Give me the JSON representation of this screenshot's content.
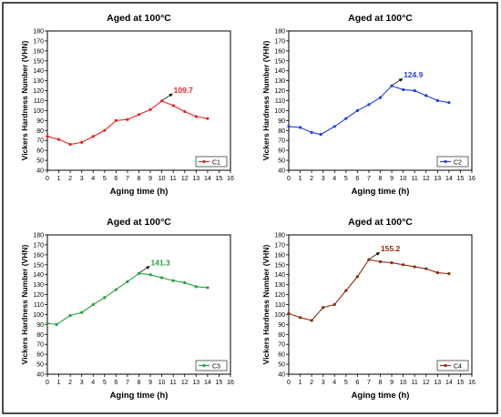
{
  "chart_data": [
    {
      "type": "line",
      "title": "Aged at 100°C",
      "xlabel": "Aging time (h)",
      "ylabel": "Vickers Hardness Number (VHN)",
      "xlim": [
        0,
        16
      ],
      "ylim": [
        40,
        180
      ],
      "xticks": [
        "0",
        "1",
        "2",
        "3",
        "4",
        "5",
        "6",
        "7",
        "8",
        "9",
        "10",
        "11",
        "12",
        "13",
        "14",
        "15",
        "16"
      ],
      "yticks": [
        "40",
        "50",
        "60",
        "70",
        "80",
        "90",
        "100",
        "110",
        "120",
        "130",
        "140",
        "150",
        "160",
        "170",
        "180"
      ],
      "grid": false,
      "legend_position": "bottom-right",
      "color": "#e8231e",
      "series": [
        {
          "name": "C1",
          "x": [
            0,
            1,
            2,
            3,
            4,
            5,
            6,
            7,
            8,
            9,
            10,
            11,
            12,
            13,
            14
          ],
          "y": [
            74,
            71,
            66,
            68,
            74,
            80,
            90,
            91,
            96,
            101,
            109.7,
            105,
            99,
            94,
            92
          ]
        }
      ],
      "annotation": {
        "text": "109.7",
        "x": 10,
        "y": 109.7
      }
    },
    {
      "type": "line",
      "title": "Aged at 100°C",
      "xlabel": "Aging time (h)",
      "ylabel": "Vickers Hardness Number (VHN)",
      "xlim": [
        0,
        16
      ],
      "ylim": [
        40,
        180
      ],
      "xticks": [
        "0",
        "1",
        "2",
        "3",
        "4",
        "5",
        "6",
        "7",
        "8",
        "9",
        "10",
        "11",
        "12",
        "13",
        "14",
        "15",
        "16"
      ],
      "yticks": [
        "40",
        "50",
        "60",
        "70",
        "80",
        "90",
        "100",
        "110",
        "120",
        "130",
        "140",
        "150",
        "160",
        "170",
        "180"
      ],
      "grid": false,
      "legend_position": "bottom-right",
      "color": "#1f3fe0",
      "series": [
        {
          "name": "C2",
          "x": [
            0,
            1,
            2,
            2.8,
            4,
            5,
            6,
            7,
            8,
            9,
            10,
            11,
            12,
            13,
            14
          ],
          "y": [
            84,
            83,
            78,
            76,
            84,
            92,
            100,
            106,
            113,
            124.9,
            121,
            120,
            115,
            110,
            108
          ]
        }
      ],
      "annotation": {
        "text": "124.9",
        "x": 9,
        "y": 124.9
      }
    },
    {
      "type": "line",
      "title": "Aged at 100°C",
      "xlabel": "Aging time (h)",
      "ylabel": "Vickers Hardness Number (VHN)",
      "xlim": [
        0,
        16
      ],
      "ylim": [
        40,
        180
      ],
      "xticks": [
        "0",
        "1",
        "2",
        "3",
        "4",
        "5",
        "6",
        "7",
        "8",
        "9",
        "10",
        "11",
        "12",
        "13",
        "14",
        "15",
        "16"
      ],
      "yticks": [
        "40",
        "50",
        "60",
        "70",
        "80",
        "90",
        "100",
        "110",
        "120",
        "130",
        "140",
        "150",
        "160",
        "170",
        "180"
      ],
      "grid": false,
      "legend_position": "bottom-right",
      "color": "#23a33a",
      "series": [
        {
          "name": "C3",
          "x": [
            0,
            0.8,
            2,
            3,
            4,
            5,
            6,
            7,
            8,
            9,
            10,
            11,
            12,
            13,
            14
          ],
          "y": [
            91,
            90,
            99,
            102,
            110,
            117,
            125,
            133,
            141.3,
            140,
            137,
            134,
            132,
            128,
            127
          ]
        }
      ],
      "annotation": {
        "text": "141.3",
        "x": 8,
        "y": 141.3
      }
    },
    {
      "type": "line",
      "title": "Aged at 100°C",
      "xlabel": "Aging time (h)",
      "ylabel": "Vickers Hardness Number (VHN)",
      "xlim": [
        0,
        16
      ],
      "ylim": [
        40,
        180
      ],
      "xticks": [
        "0",
        "1",
        "2",
        "3",
        "4",
        "5",
        "6",
        "7",
        "8",
        "9",
        "10",
        "11",
        "12",
        "13",
        "14",
        "15",
        "16"
      ],
      "yticks": [
        "40",
        "50",
        "60",
        "70",
        "80",
        "90",
        "100",
        "110",
        "120",
        "130",
        "140",
        "150",
        "160",
        "170",
        "180"
      ],
      "grid": false,
      "legend_position": "bottom-right",
      "color": "#8b2c0a",
      "series": [
        {
          "name": "C4",
          "x": [
            0,
            1,
            2,
            3,
            4,
            5,
            6,
            7,
            8,
            9,
            10,
            11,
            12,
            13,
            14
          ],
          "y": [
            101,
            97,
            94,
            107,
            110,
            124,
            138,
            155.2,
            153,
            152,
            150,
            148,
            146,
            142,
            141
          ]
        }
      ],
      "annotation": {
        "text": "155.2",
        "x": 7,
        "y": 155.2
      }
    }
  ]
}
